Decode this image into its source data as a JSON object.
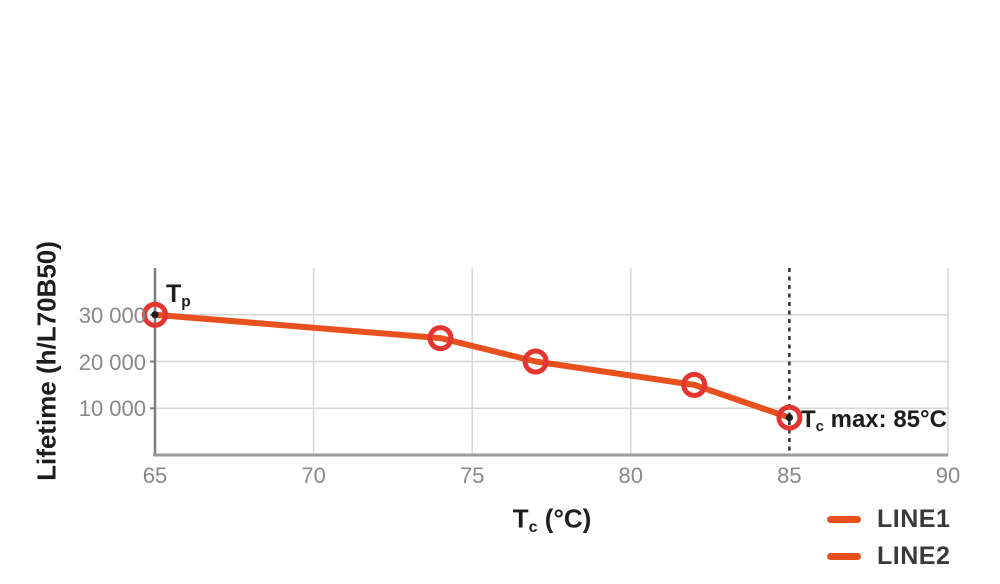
{
  "colors": {
    "background": "#ffffff",
    "line_orange": "#e8501e",
    "marker_red": "#e43531",
    "grid_gray": "#d6d6d5",
    "axis_left_gray": "#7f7e7c",
    "axis_bottom_gray": "#9c9c9b",
    "tick_text_gray": "#87888a",
    "label_black": "#1d1d1b",
    "legend_text": "#3a3a39",
    "vline_black": "#2f2f2e",
    "dot_black": "#1d1d1b"
  },
  "chart_data": {
    "type": "line",
    "title": "",
    "ylabel": "Lifetime (h/L70B50)",
    "xlabel": {
      "main": "T",
      "sub": "c",
      "rest": " (°C)"
    },
    "xlim": [
      65,
      90
    ],
    "ylim": [
      0,
      40000
    ],
    "grid": true,
    "x_tick_values": [
      65,
      70,
      75,
      80,
      85,
      90
    ],
    "x_tick_labels": [
      "65",
      "70",
      "75",
      "80",
      "85",
      "90"
    ],
    "y_tick_values": [
      10000,
      20000,
      30000
    ],
    "y_tick_labels": [
      "10 000",
      "20 000",
      "30 000"
    ],
    "series": [
      {
        "name": "LINE1",
        "color": "#e8501e",
        "x": [
          65,
          74,
          77,
          82,
          85
        ],
        "y": [
          30000,
          25000,
          20000,
          15000,
          8000
        ]
      }
    ],
    "marker": {
      "shape": "open-circle",
      "color": "#e43531"
    },
    "dot_point_indices": [
      0,
      4
    ],
    "vline": {
      "x": 85,
      "style": "dashed",
      "color": "#2f2f2e"
    },
    "annotations": [
      {
        "id": "tp",
        "main": "T",
        "sub": "p",
        "rest": "",
        "at_x": 65,
        "at_y": 30000
      },
      {
        "id": "tc-max",
        "main": "T",
        "sub": "c",
        "rest": " max: 85°C",
        "at_x": 85,
        "at_y": 8000
      }
    ],
    "legend": {
      "position": "bottom-right",
      "items": [
        {
          "label": "LINE1",
          "color": "#e8501e"
        },
        {
          "label": "LINE2",
          "color": "#e8501e"
        }
      ]
    }
  }
}
